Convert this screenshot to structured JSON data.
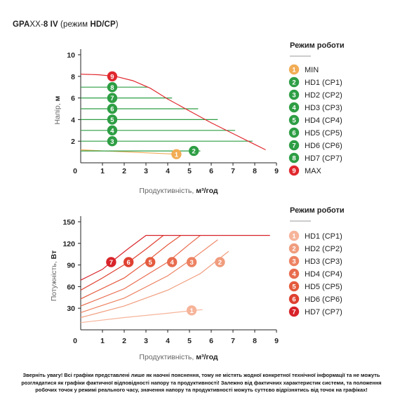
{
  "title": {
    "model": "GPA",
    "model_light": "XX-",
    "model_end": "8 IV",
    "mode_text": " (режим ",
    "mode_bold": "HD/CP",
    "close": ")"
  },
  "note": "Зверніть увагу! Всі графіки представлені лише як наочні пояснення, тому не містять жодної конкретної технічної інформації та не можуть розглядатися як графіки фактичної відповідності напору та продуктивності! Залежно від фактичних характеристик системи, та положення робочих точок у режимі реального часу, значення напору та продуктивності можуть суттєво відрізнятись від точок на графіках!",
  "chart_data": [
    {
      "type": "line",
      "xlabel": "Продуктивність, м³/год",
      "xlabel_plain": "Продуктивність, ",
      "xlabel_bold": "м³/год",
      "ylabel": "Напір, м",
      "ylabel_plain": "Напір, ",
      "ylabel_bold": "м",
      "xlim": [
        0,
        9
      ],
      "ylim": [
        0,
        10
      ],
      "x_ticks": [
        "0",
        "1",
        "2",
        "3",
        "4",
        "5",
        "6",
        "7",
        "8",
        "9"
      ],
      "y_ticks": [
        "2",
        "4",
        "6",
        "8",
        "10"
      ],
      "legend_title": "Режим роботи",
      "series": [
        {
          "num": "1",
          "name": "MIN",
          "color": "#f2ac55",
          "points": [
            [
              0,
              1.2
            ],
            [
              4.4,
              0.8
            ]
          ],
          "marker": [
            4.4,
            0.8
          ]
        },
        {
          "num": "2",
          "name": "HD1 (CP1)",
          "color": "#2e9e44",
          "points": [
            [
              0,
              1.1
            ],
            [
              5.5,
              1.1
            ]
          ],
          "marker": [
            5.2,
            1.1
          ]
        },
        {
          "num": "3",
          "name": "HD2 (CP2)",
          "color": "#2e9e44",
          "points": [
            [
              0,
              2.0
            ],
            [
              7.9,
              2.0
            ]
          ],
          "marker": [
            1.45,
            2.0
          ]
        },
        {
          "num": "4",
          "name": "HD3 (CP3)",
          "color": "#2e9e44",
          "points": [
            [
              0,
              3.0
            ],
            [
              7.1,
              3.0
            ]
          ],
          "marker": [
            1.45,
            3.0
          ]
        },
        {
          "num": "5",
          "name": "HD4 (CP4)",
          "color": "#2e9e44",
          "points": [
            [
              0,
              4.0
            ],
            [
              6.3,
              4.0
            ]
          ],
          "marker": [
            1.45,
            4.0
          ]
        },
        {
          "num": "6",
          "name": "HD5 (CP5)",
          "color": "#2e9e44",
          "points": [
            [
              0,
              5.0
            ],
            [
              5.4,
              5.0
            ]
          ],
          "marker": [
            1.45,
            5.0
          ]
        },
        {
          "num": "7",
          "name": "HD6 (CP6)",
          "color": "#2e9e44",
          "points": [
            [
              0,
              6.0
            ],
            [
              4.2,
              6.0
            ]
          ],
          "marker": [
            1.45,
            6.0
          ]
        },
        {
          "num": "8",
          "name": "HD7 (CP7)",
          "color": "#2e9e44",
          "points": [
            [
              0,
              7.0
            ],
            [
              3.1,
              7.0
            ]
          ],
          "marker": [
            1.45,
            7.0
          ]
        },
        {
          "num": "9",
          "name": "MAX",
          "color": "#e0282e",
          "points": [
            [
              0,
              8.2
            ],
            [
              0.8,
              8.15
            ],
            [
              1.6,
              8.0
            ],
            [
              2.4,
              7.6
            ],
            [
              3.2,
              6.9
            ],
            [
              4.0,
              5.9
            ],
            [
              5.0,
              4.8
            ],
            [
              6.0,
              3.7
            ],
            [
              7.0,
              2.7
            ],
            [
              8.0,
              1.7
            ],
            [
              8.5,
              1.2
            ]
          ],
          "marker": [
            1.45,
            8.0
          ]
        }
      ]
    },
    {
      "type": "line",
      "xlabel": "Продуктивність, м³/год",
      "xlabel_plain": "Продуктивність, ",
      "xlabel_bold": "м³/год",
      "ylabel": "Потужність, Вт",
      "ylabel_plain": "Потужність, ",
      "ylabel_bold": "Вт",
      "xlim": [
        0,
        9
      ],
      "ylim": [
        0,
        150
      ],
      "x_ticks": [
        "0",
        "1",
        "2",
        "3",
        "4",
        "5",
        "6",
        "7",
        "8",
        "9"
      ],
      "y_ticks": [
        "30",
        "60",
        "90",
        "120",
        "150"
      ],
      "legend_title": "Режим роботи",
      "series": [
        {
          "num": "1",
          "name": "HD1 (CP1)",
          "color": "#f6b49a",
          "points": [
            [
              0,
              10
            ],
            [
              2.0,
              17
            ],
            [
              4.0,
              23
            ],
            [
              5.2,
              27
            ],
            [
              5.6,
              28
            ]
          ],
          "marker": [
            5.1,
            27
          ]
        },
        {
          "num": "2",
          "name": "HD2 (CP2)",
          "color": "#f09c7d",
          "points": [
            [
              0,
              17
            ],
            [
              2.0,
              33
            ],
            [
              4.0,
              55
            ],
            [
              5.5,
              78
            ],
            [
              6.8,
              109
            ]
          ],
          "marker": [
            6.4,
            94
          ]
        },
        {
          "num": "3",
          "name": "HD3 (CP3)",
          "color": "#ed8262",
          "points": [
            [
              0,
              24
            ],
            [
              2.0,
              44
            ],
            [
              4.0,
              75
            ],
            [
              5.2,
              100
            ],
            [
              6.3,
              125
            ]
          ],
          "marker": [
            5.1,
            94
          ]
        },
        {
          "num": "4",
          "name": "HD4 (CP4)",
          "color": "#e86c4f",
          "points": [
            [
              0,
              33
            ],
            [
              2.0,
              57
            ],
            [
              4.0,
              94
            ],
            [
              5.0,
              119
            ],
            [
              5.5,
              131
            ]
          ],
          "marker": [
            4.2,
            94
          ]
        },
        {
          "num": "5",
          "name": "HD5 (CP5)",
          "color": "#e45a3d",
          "points": [
            [
              0,
              43
            ],
            [
              2.0,
              72
            ],
            [
              3.0,
              94
            ],
            [
              4.0,
              118
            ],
            [
              4.6,
              131
            ]
          ],
          "marker": [
            3.2,
            94
          ]
        },
        {
          "num": "6",
          "name": "HD6 (CP6)",
          "color": "#df4030",
          "points": [
            [
              0,
              55
            ],
            [
              1.0,
              72
            ],
            [
              2.2,
              94
            ],
            [
              3.0,
              112
            ],
            [
              3.8,
              131
            ]
          ],
          "marker": [
            2.2,
            94
          ]
        },
        {
          "num": "7",
          "name": "HD7 (CP7)",
          "color": "#d8232a",
          "points": [
            [
              0,
              69
            ],
            [
              1.0,
              84
            ],
            [
              1.4,
              94
            ],
            [
              2.2,
              113
            ],
            [
              3.0,
              131
            ],
            [
              8.7,
              131
            ]
          ],
          "marker": [
            1.4,
            94
          ]
        }
      ]
    }
  ]
}
